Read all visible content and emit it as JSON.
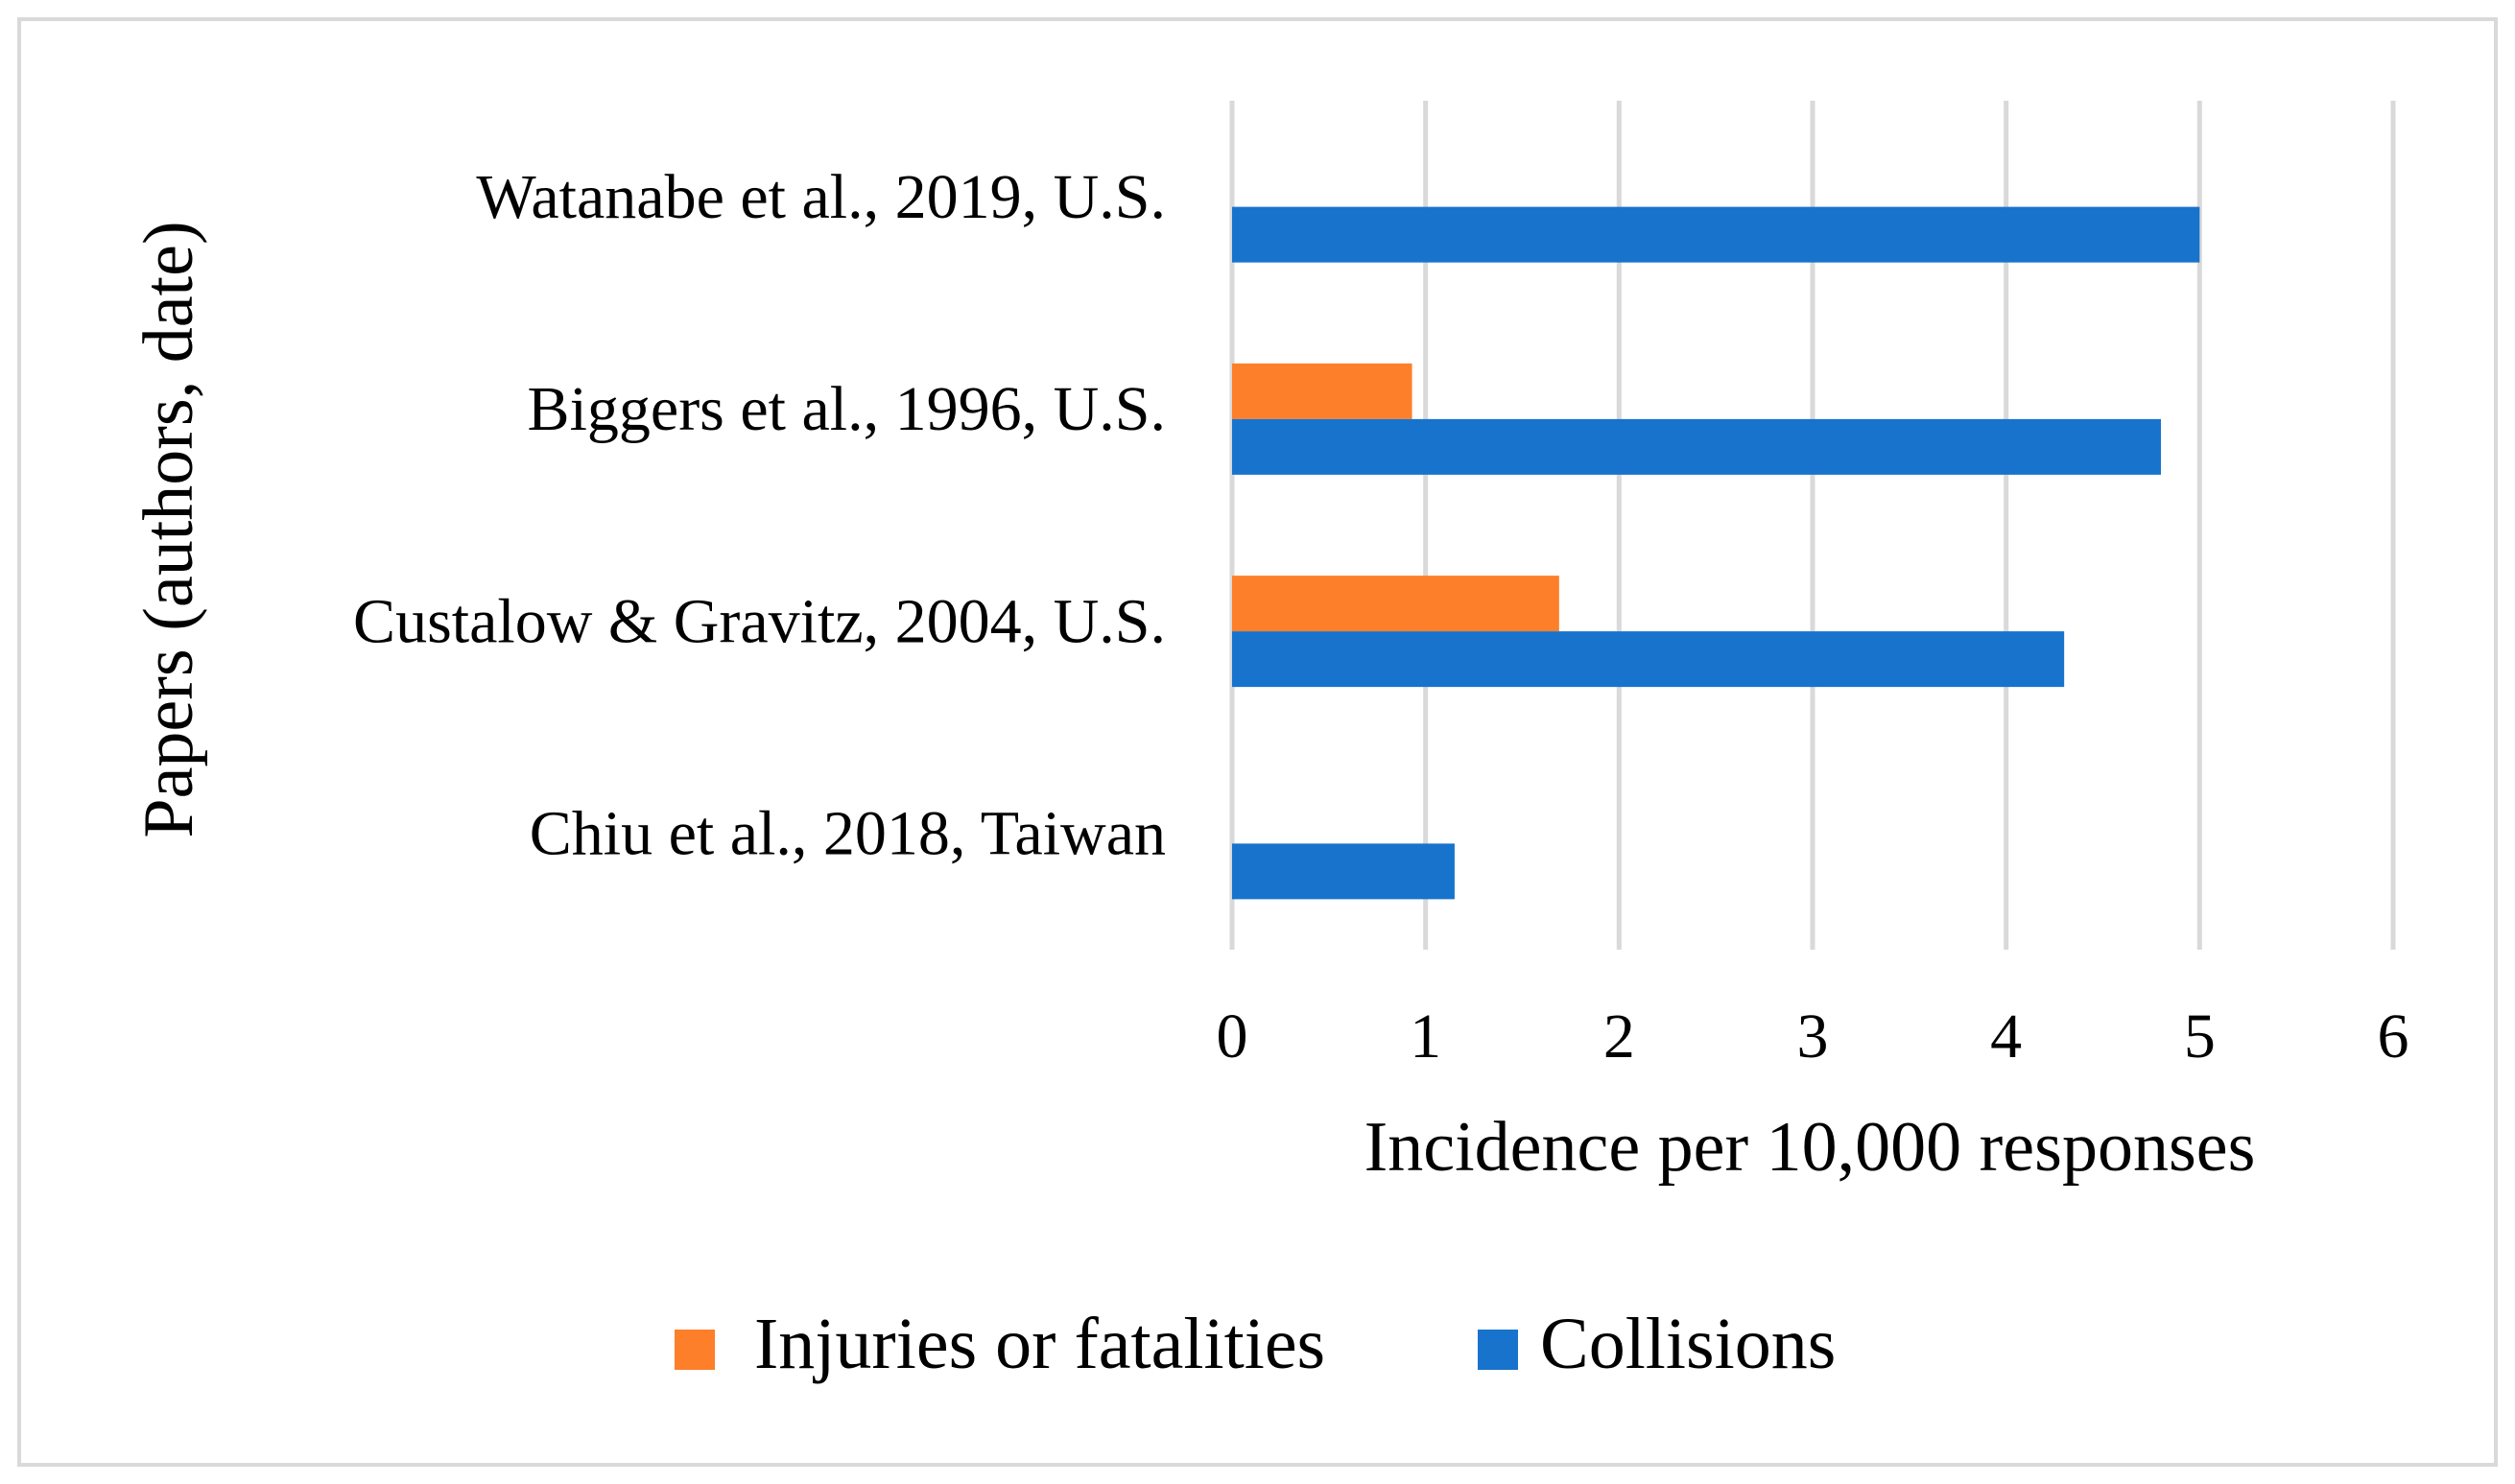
{
  "chart_data": {
    "type": "bar",
    "orientation": "horizontal",
    "categories": [
      "Watanabe et al., 2019, U.S.",
      "Biggers et al., 1996, U.S.",
      "Custalow & Gravitz, 2004, U.S.",
      "Chiu et al., 2018, Taiwan"
    ],
    "series": [
      {
        "name": "Injuries or fatalities",
        "color": "#fd7f2a",
        "values": [
          null,
          0.93,
          1.69,
          null
        ]
      },
      {
        "name": "Collisions",
        "color": "#1873cc",
        "values": [
          5.0,
          4.8,
          4.3,
          1.15
        ]
      }
    ],
    "title": "",
    "xlabel": "Incidence per 10,000 responses",
    "ylabel": "Papers (authors, date)",
    "xlim": [
      0,
      6
    ],
    "xticks": [
      "0",
      "1",
      "2",
      "3",
      "4",
      "5",
      "6"
    ],
    "grid": true,
    "gridColor": "#d9d9d9",
    "legend_position": "bottom"
  }
}
